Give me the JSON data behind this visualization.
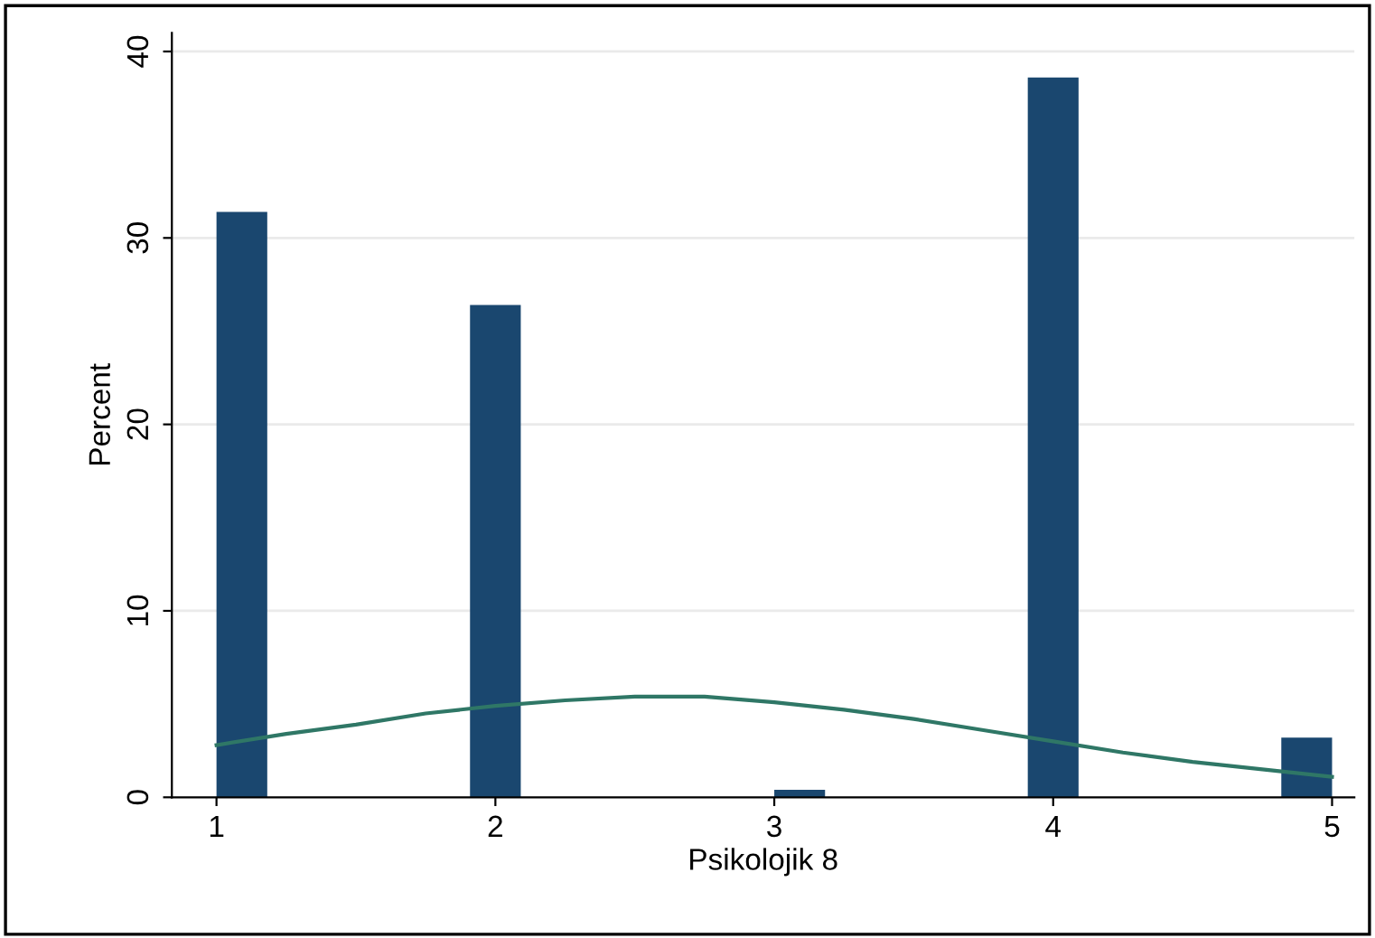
{
  "chart_data": {
    "type": "histogram",
    "xlabel": "Psikolojik 8",
    "ylabel": "Percent",
    "series": [
      {
        "color": "#1a476f",
        "bins": [
          1,
          1.182,
          1.364,
          1.545,
          1.727,
          1.909,
          2.091,
          2.273,
          2.455,
          2.636,
          2.818,
          3,
          3.182,
          3.364,
          3.545,
          3.727,
          3.909,
          4.091,
          4.273,
          4.455,
          4.636,
          4.818,
          5
        ],
        "values": [
          31.4,
          0,
          0,
          0,
          0,
          26.4,
          0,
          0,
          0,
          0,
          0,
          0.4,
          0,
          0,
          0,
          0,
          38.6,
          0,
          0,
          0,
          0,
          3.2
        ]
      },
      {
        "type": "line",
        "color": "#2f7766",
        "x": [
          1,
          1.25,
          1.5,
          1.75,
          2,
          2.25,
          2.5,
          2.75,
          3,
          3.25,
          3.5,
          3.75,
          4,
          4.25,
          4.5,
          4.75,
          5
        ],
        "values": [
          2.8,
          3.4,
          3.9,
          4.5,
          4.9,
          5.2,
          5.4,
          5.4,
          5.1,
          4.7,
          4.2,
          3.6,
          3.0,
          2.4,
          1.9,
          1.5,
          1.1
        ]
      }
    ],
    "xlim": [
      0.84,
      5.08
    ],
    "ylim": [
      0,
      41
    ],
    "xticks": [
      1,
      2,
      3,
      4,
      5
    ],
    "yticks": [
      0,
      10,
      20,
      30,
      40
    ],
    "grid": "y",
    "legend": false
  }
}
